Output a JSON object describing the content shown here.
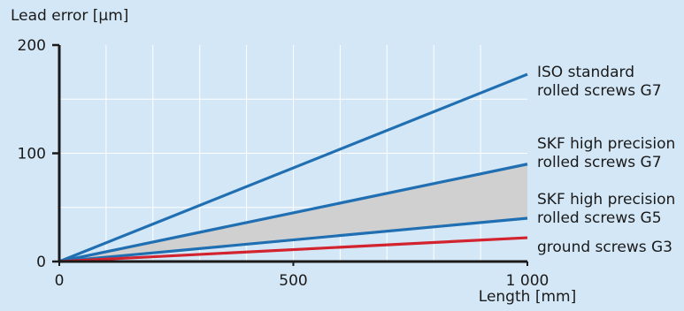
{
  "chart_data": {
    "type": "line",
    "title": "",
    "ylabel": "Lead error [µm]",
    "xlabel": "Length [mm]",
    "xlim": [
      0,
      1000
    ],
    "ylim": [
      0,
      200
    ],
    "x_ticks": [
      {
        "value": 0,
        "label": "0"
      },
      {
        "value": 500,
        "label": "500"
      },
      {
        "value": 1000,
        "label": "1 000"
      }
    ],
    "y_ticks": [
      {
        "value": 0,
        "label": "0"
      },
      {
        "value": 100,
        "label": "100"
      },
      {
        "value": 200,
        "label": "200"
      }
    ],
    "grid": true,
    "colors": {
      "background": "#d4e7f6",
      "grid": "#ffffff",
      "axis": "#1a1a1a",
      "blue": "#1f6fb2",
      "red": "#d2232f",
      "band": "#d0d0d0"
    },
    "series": [
      {
        "name": "ISO standard rolled screws G7",
        "label_lines": [
          "ISO standard",
          "rolled screws G7"
        ],
        "color": "#1f6fb2",
        "x": [
          0,
          1000
        ],
        "y": [
          0,
          173
        ]
      },
      {
        "name": "SKF high precision rolled screws G7",
        "label_lines": [
          "SKF high precision",
          "rolled screws G7"
        ],
        "color": "#1f6fb2",
        "x": [
          0,
          1000
        ],
        "y": [
          0,
          90
        ]
      },
      {
        "name": "SKF high precision rolled screws G5",
        "label_lines": [
          "SKF high precision",
          "rolled screws G5"
        ],
        "color": "#1f6fb2",
        "x": [
          0,
          1000
        ],
        "y": [
          0,
          40
        ]
      },
      {
        "name": "ground screws G3",
        "label_lines": [
          "ground screws G3"
        ],
        "color": "#d2232f",
        "x": [
          0,
          1000
        ],
        "y": [
          0,
          22
        ]
      }
    ],
    "shaded_band": {
      "between_series": [
        1,
        2
      ],
      "color": "#d0d0d0"
    }
  }
}
